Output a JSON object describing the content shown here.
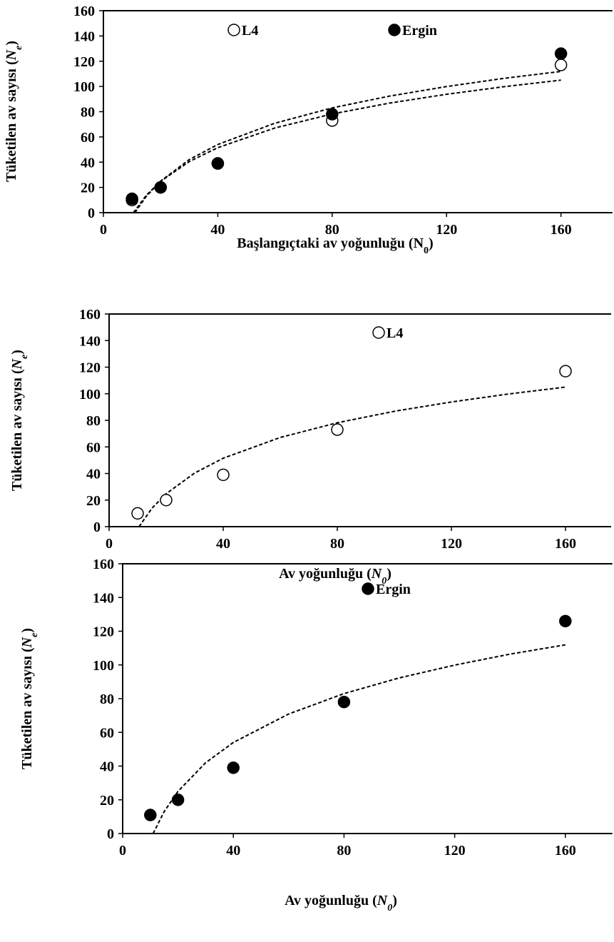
{
  "chart_data": [
    {
      "type": "scatter",
      "xlabel": [
        "Başlangıçtaki av yoğunluğu (",
        "N",
        "0",
        ")"
      ],
      "xlabel_italic": false,
      "ylabel": [
        "Tüketilen av sayısı (",
        "N",
        "e",
        ")"
      ],
      "x": [
        10,
        20,
        40,
        80,
        160
      ],
      "xlim": [
        0,
        178
      ],
      "ylim": [
        0,
        160
      ],
      "xticks": [
        0,
        40,
        80,
        120,
        160
      ],
      "yticks": [
        0,
        20,
        40,
        60,
        80,
        100,
        120,
        140,
        160
      ],
      "legend_bold": false,
      "series": [
        {
          "name": "L4",
          "color": "#000000",
          "marker": "open",
          "values": [
            10,
            20,
            39,
            73,
            117
          ],
          "trendline": {
            "x": [
              10.5,
              15,
              20,
              30,
              40,
              60,
              80,
              100,
              120,
              140,
              160
            ],
            "values": [
              0,
              13.8,
              24.8,
              40.4,
              51.5,
              67.1,
              78.2,
              86.8,
              93.8,
              99.8,
              105
            ]
          }
        },
        {
          "name": "Ergin",
          "color": "#000000",
          "marker": "filled",
          "values": [
            11,
            20,
            39,
            78,
            126
          ],
          "trendline": {
            "x": [
              11,
              15,
              20,
              30,
              40,
              60,
              80,
              100,
              120,
              140,
              160
            ],
            "values": [
              0,
              13,
              25,
              42,
              54,
              70.9,
              83,
              92.3,
              99.9,
              106.4,
              111.9
            ]
          }
        }
      ]
    },
    {
      "type": "scatter",
      "xlabel": [
        "Av yoğunluğu (",
        "N",
        "0",
        ")"
      ],
      "xlabel_italic": true,
      "ylabel": [
        "Tüketilen av sayısı (",
        "N",
        "e",
        ")"
      ],
      "x": [
        10,
        20,
        40,
        80,
        160
      ],
      "xlim": [
        0,
        176
      ],
      "ylim": [
        0,
        160
      ],
      "xticks": [
        0,
        40,
        80,
        120,
        160
      ],
      "yticks": [
        0,
        20,
        40,
        60,
        80,
        100,
        120,
        140,
        160
      ],
      "legend_bold": true,
      "series": [
        {
          "name": "L4",
          "color": "#000000",
          "marker": "open",
          "values": [
            10,
            20,
            39,
            73,
            117
          ],
          "trendline": {
            "x": [
              10.5,
              15,
              20,
              30,
              40,
              60,
              80,
              100,
              120,
              140,
              160
            ],
            "values": [
              0,
              13.8,
              24.8,
              40.4,
              51.5,
              67.1,
              78.2,
              86.8,
              93.8,
              99.8,
              105
            ]
          }
        }
      ]
    },
    {
      "type": "scatter",
      "xlabel": [
        "Av yoğunluğu (",
        "N",
        "0",
        ")"
      ],
      "xlabel_italic": true,
      "ylabel": [
        "Tüketilen av sayısı (",
        "N",
        "e",
        ")"
      ],
      "x": [
        10,
        20,
        40,
        80,
        160
      ],
      "xlim": [
        0,
        177
      ],
      "ylim": [
        0,
        160
      ],
      "xticks": [
        0,
        40,
        80,
        120,
        160
      ],
      "yticks": [
        0,
        20,
        40,
        60,
        80,
        100,
        120,
        140,
        160
      ],
      "legend_bold": true,
      "series": [
        {
          "name": "Ergin",
          "color": "#000000",
          "marker": "filled",
          "values": [
            11,
            20,
            39,
            78,
            126
          ],
          "trendline": {
            "x": [
              11,
              15,
              20,
              30,
              40,
              60,
              80,
              100,
              120,
              140,
              160
            ],
            "values": [
              0,
              13,
              25,
              42,
              54,
              70.9,
              83,
              92.3,
              99.9,
              106.4,
              111.9
            ]
          }
        }
      ]
    }
  ]
}
